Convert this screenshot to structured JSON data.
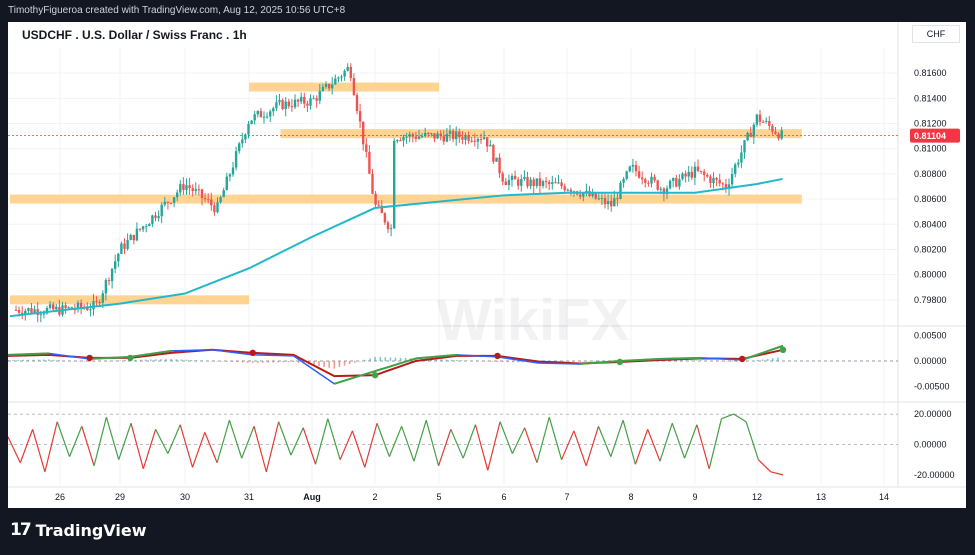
{
  "header": {
    "credit": "TimothyFigueroa created with TradingView.com, Aug 12, 2025 10:56 UTC+8"
  },
  "chart_title": "USDCHF . U.S. Dollar / Swiss Franc . 1h",
  "currency_label": "CHF",
  "watermark": "WikiFX",
  "footer": {
    "brand": "TradingView"
  },
  "colors": {
    "up": "#26a69a",
    "down": "#ef5350",
    "zone": "#ffcc80",
    "ma": "#22b8c9",
    "macd": "#2962ff",
    "signal": "#b71c1c",
    "rsi_up": "#43a047",
    "rsi_down": "#e53935",
    "current_price": "#f23645"
  },
  "chart_data": [
    {
      "type": "candlestick",
      "title": "USDCHF . U.S. Dollar / Swiss Franc . 1h",
      "x_ticks": [
        "26",
        "29",
        "30",
        "31",
        "Aug",
        "2",
        "5",
        "6",
        "7",
        "8",
        "9",
        "12",
        "13",
        "14"
      ],
      "y_ticks": [
        "0.81600",
        "0.81400",
        "0.81200",
        "0.81000",
        "0.80800",
        "0.80600",
        "0.80400",
        "0.80200",
        "0.80000",
        "0.79800"
      ],
      "ylim": [
        0.796,
        0.818
      ],
      "current_price": "0.81104",
      "key_points": [
        {
          "x": "26",
          "close": 0.7972
        },
        {
          "x": "28",
          "close": 0.7975
        },
        {
          "x": "29",
          "close": 0.802
        },
        {
          "x": "30",
          "close": 0.8072
        },
        {
          "x": "30.5",
          "close": 0.8052
        },
        {
          "x": "31",
          "close": 0.8123
        },
        {
          "x": "31.5",
          "close": 0.8135
        },
        {
          "x": "Aug",
          "close": 0.8138
        },
        {
          "x": "Aug.6",
          "close": 0.8165
        },
        {
          "x": "2",
          "close": 0.8055
        },
        {
          "x": "2.3",
          "close": 0.8033
        },
        {
          "x": "4.5",
          "close": 0.8085
        },
        {
          "x": "5.7",
          "close": 0.811
        },
        {
          "x": "6",
          "close": 0.8075
        },
        {
          "x": "7",
          "close": 0.807
        },
        {
          "x": "7.7",
          "close": 0.8055
        },
        {
          "x": "8",
          "close": 0.8085
        },
        {
          "x": "8.5",
          "close": 0.8068
        },
        {
          "x": "9",
          "close": 0.8082
        },
        {
          "x": "9.5",
          "close": 0.807
        },
        {
          "x": "12",
          "close": 0.8125
        },
        {
          "x": "12.4",
          "close": 0.811
        }
      ],
      "moving_average": [
        {
          "x": "26",
          "y": 0.7967
        },
        {
          "x": "29",
          "y": 0.7977
        },
        {
          "x": "30",
          "y": 0.7985
        },
        {
          "x": "31",
          "y": 0.8005
        },
        {
          "x": "Aug",
          "y": 0.803
        },
        {
          "x": "2",
          "y": 0.8053
        },
        {
          "x": "5",
          "y": 0.8058
        },
        {
          "x": "6",
          "y": 0.8063
        },
        {
          "x": "7",
          "y": 0.8065
        },
        {
          "x": "9",
          "y": 0.8065
        },
        {
          "x": "12",
          "y": 0.8072
        },
        {
          "x": "12.4",
          "y": 0.8076
        }
      ],
      "zones": [
        {
          "from": "31",
          "to": "5",
          "level": 0.8149
        },
        {
          "from": "31.5",
          "to": "12.7",
          "level": 0.8112
        },
        {
          "from": "26",
          "to": "12.7",
          "level": 0.806
        },
        {
          "from": "26",
          "to": "31",
          "level": 0.798
        }
      ]
    },
    {
      "type": "line",
      "y_ticks": [
        "0.00500",
        "0.00000",
        "-0.00500"
      ],
      "ylim": [
        -0.0075,
        0.0065
      ],
      "series": [
        {
          "key": "macd",
          "values": [
            0.0012,
            0.0015,
            0.0004,
            0.0008,
            0.002,
            0.0022,
            0.0012,
            0.001,
            -0.0045,
            -0.002,
            0.0005,
            0.0012,
            0.0008,
            -0.0004,
            -0.0006,
            0.0,
            0.0004,
            0.0006,
            0.0002,
            0.003
          ]
        },
        {
          "key": "signal",
          "values": [
            0.001,
            0.0012,
            0.0006,
            0.0006,
            0.0016,
            0.0022,
            0.0016,
            0.0012,
            -0.003,
            -0.0028,
            0.0,
            0.001,
            0.001,
            -0.0001,
            -0.0005,
            -0.0002,
            0.0002,
            0.0005,
            0.0004,
            0.0022
          ]
        },
        {
          "key": "histogram",
          "values": [
            0.0002,
            0.0003,
            -0.0002,
            0.0002,
            0.0004,
            0.0,
            -0.0004,
            -0.0002,
            -0.0015,
            0.0008,
            0.0005,
            0.0002,
            -0.0002,
            -0.0003,
            -0.0001,
            0.0002,
            0.0002,
            0.0001,
            -0.0002,
            0.0008
          ]
        }
      ]
    },
    {
      "type": "line",
      "y_ticks": [
        "20.00000",
        "0.00000",
        "-20.00000"
      ],
      "ylim": [
        -26,
        26
      ],
      "series": [
        {
          "key": "oscillator",
          "values": [
            5,
            -12,
            10,
            -18,
            15,
            -8,
            12,
            -14,
            18,
            -10,
            14,
            -16,
            10,
            -6,
            13,
            -15,
            8,
            -12,
            16,
            -9,
            12,
            -18,
            15,
            -7,
            11,
            -13,
            17,
            -10,
            9,
            -15,
            14,
            -8,
            12,
            -11,
            16,
            -14,
            10,
            -9,
            13,
            -17,
            15,
            -6,
            11,
            -12,
            18,
            -10,
            9,
            -14,
            12,
            -8,
            16,
            -13,
            10,
            -11,
            14,
            -9,
            13,
            -16,
            17,
            20,
            15,
            -10,
            -18,
            -20
          ]
        }
      ]
    }
  ]
}
